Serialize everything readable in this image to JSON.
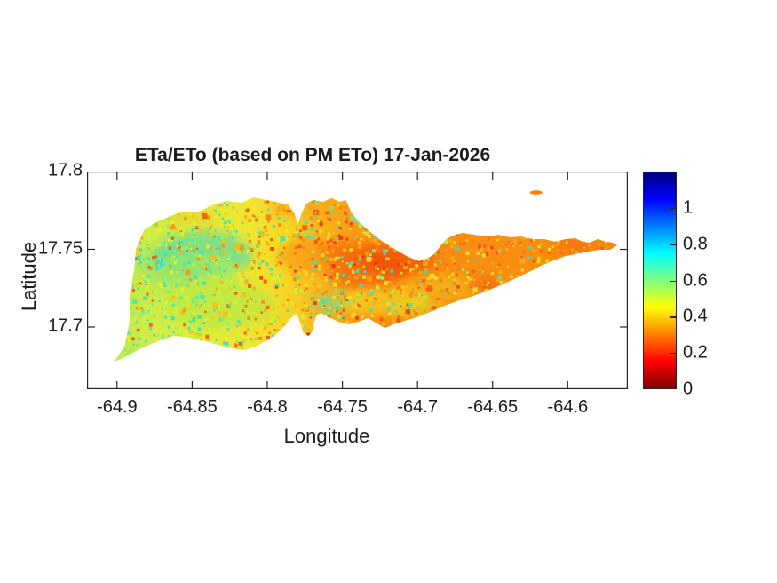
{
  "chart_data": {
    "type": "heatmap",
    "title": "ETa/ETo (based on PM ETo) 17-Jan-2026",
    "xlabel": "Longitude",
    "ylabel": "Latitude",
    "xlim": [
      -64.92,
      -64.56
    ],
    "ylim": [
      17.66,
      17.8
    ],
    "grid": false,
    "xticks": [
      -64.9,
      -64.85,
      -64.8,
      -64.75,
      -64.7,
      -64.65,
      -64.6
    ],
    "xtick_labels": [
      "-64.9",
      "-64.85",
      "-64.8",
      "-64.75",
      "-64.7",
      "-64.65",
      "-64.6"
    ],
    "yticks": [
      17.8,
      17.75,
      17.7
    ],
    "ytick_labels": [
      "17.8",
      "17.75",
      "17.7"
    ],
    "colorbar": {
      "min": 0,
      "max": 1.2,
      "ticks": [
        0,
        0.2,
        0.4,
        0.6,
        0.8,
        1
      ],
      "tick_labels": [
        "0",
        "0.2",
        "0.4",
        "0.6",
        "0.8",
        "1"
      ],
      "colormap": "jet-reversed (0 = dark red at bottom, 1.2 = dark blue at top)",
      "stops": [
        [
          0,
          "#800000"
        ],
        [
          0.125,
          "#ff0000"
        ],
        [
          0.25,
          "#ff8000"
        ],
        [
          0.375,
          "#ffff00"
        ],
        [
          0.5,
          "#80ff80"
        ],
        [
          0.625,
          "#00ffff"
        ],
        [
          0.75,
          "#0080ff"
        ],
        [
          0.875,
          "#0000ff"
        ],
        [
          1,
          "#000080"
        ]
      ]
    },
    "value_summary": {
      "west_island": "ETa/ETo mostly 0.45-0.75: yellow-green base with many cyan/green patches",
      "central_island": "ETa/ETo mostly 0.2-0.45: orange to red patches with scattered cyan specks",
      "east_island": "ETa/ETo mostly 0.25-0.4: fairly uniform orange toward the east point"
    },
    "island_outline": [
      [
        -64.902,
        17.6777
      ],
      [
        -64.8951,
        17.6874
      ],
      [
        -64.8916,
        17.7034
      ],
      [
        -64.8916,
        17.7206
      ],
      [
        -64.8886,
        17.7371
      ],
      [
        -64.8874,
        17.7503
      ],
      [
        -64.8821,
        17.7623
      ],
      [
        -64.8744,
        17.7674
      ],
      [
        -64.8655,
        17.7709
      ],
      [
        -64.8567,
        17.7743
      ],
      [
        -64.8466,
        17.7737
      ],
      [
        -64.8371,
        17.7783
      ],
      [
        -64.827,
        17.7811
      ],
      [
        -64.817,
        17.78
      ],
      [
        -64.8093,
        17.7834
      ],
      [
        -64.8004,
        17.7817
      ],
      [
        -64.7921,
        17.78
      ],
      [
        -64.7862,
        17.7789
      ],
      [
        -64.782,
        17.7731
      ],
      [
        -64.7797,
        17.7657
      ],
      [
        -64.7773,
        17.7726
      ],
      [
        -64.7743,
        17.7794
      ],
      [
        -64.769,
        17.7817
      ],
      [
        -64.7631,
        17.7806
      ],
      [
        -64.7572,
        17.7829
      ],
      [
        -64.7518,
        17.7806
      ],
      [
        -64.7477,
        17.7817
      ],
      [
        -64.7441,
        17.7737
      ],
      [
        -64.7394,
        17.768
      ],
      [
        -64.7323,
        17.7617
      ],
      [
        -64.724,
        17.7554
      ],
      [
        -64.7145,
        17.7497
      ],
      [
        -64.7062,
        17.7451
      ],
      [
        -64.6991,
        17.7423
      ],
      [
        -64.6932,
        17.744
      ],
      [
        -64.6885,
        17.7474
      ],
      [
        -64.6849,
        17.752
      ],
      [
        -64.6808,
        17.7566
      ],
      [
        -64.676,
        17.7589
      ],
      [
        -64.6701,
        17.7606
      ],
      [
        -64.6618,
        17.7594
      ],
      [
        -64.6536,
        17.7583
      ],
      [
        -64.6459,
        17.7594
      ],
      [
        -64.6382,
        17.7577
      ],
      [
        -64.6311,
        17.7583
      ],
      [
        -64.6234,
        17.7566
      ],
      [
        -64.6157,
        17.7566
      ],
      [
        -64.6086,
        17.7549
      ],
      [
        -64.6015,
        17.7566
      ],
      [
        -64.5949,
        17.7571
      ],
      [
        -64.5902,
        17.7549
      ],
      [
        -64.5855,
        17.7543
      ],
      [
        -64.5801,
        17.7566
      ],
      [
        -64.5748,
        17.7549
      ],
      [
        -64.5701,
        17.7543
      ],
      [
        -64.5671,
        17.7526
      ],
      [
        -64.5719,
        17.7497
      ],
      [
        -64.579,
        17.7497
      ],
      [
        -64.5867,
        17.7486
      ],
      [
        -64.5944,
        17.7469
      ],
      [
        -64.6015,
        17.7457
      ],
      [
        -64.6092,
        17.7429
      ],
      [
        -64.6181,
        17.7394
      ],
      [
        -64.627,
        17.7349
      ],
      [
        -64.6358,
        17.7309
      ],
      [
        -64.6447,
        17.7269
      ],
      [
        -64.6536,
        17.7234
      ],
      [
        -64.663,
        17.72
      ],
      [
        -64.6725,
        17.7171
      ],
      [
        -64.682,
        17.7137
      ],
      [
        -64.6915,
        17.7097
      ],
      [
        -64.7003,
        17.7063
      ],
      [
        -64.7086,
        17.704
      ],
      [
        -64.7157,
        17.7017
      ],
      [
        -64.7217,
        17.6994
      ],
      [
        -64.727,
        17.7023
      ],
      [
        -64.7329,
        17.7057
      ],
      [
        -64.7394,
        17.7034
      ],
      [
        -64.7459,
        17.7017
      ],
      [
        -64.7525,
        17.7034
      ],
      [
        -64.759,
        17.7063
      ],
      [
        -64.7643,
        17.7091
      ],
      [
        -64.7672,
        17.7074
      ],
      [
        -64.769,
        17.7029
      ],
      [
        -64.7702,
        17.6971
      ],
      [
        -64.7726,
        17.6943
      ],
      [
        -64.7761,
        17.6966
      ],
      [
        -64.7785,
        17.704
      ],
      [
        -64.7803,
        17.7086
      ],
      [
        -64.7838,
        17.7063
      ],
      [
        -64.7886,
        17.7006
      ],
      [
        -64.7945,
        17.6949
      ],
      [
        -64.801,
        17.6909
      ],
      [
        -64.8081,
        17.6874
      ],
      [
        -64.8158,
        17.6851
      ],
      [
        -64.8235,
        17.6863
      ],
      [
        -64.8312,
        17.688
      ],
      [
        -64.8389,
        17.6903
      ],
      [
        -64.8466,
        17.692
      ],
      [
        -64.8543,
        17.6937
      ],
      [
        -64.862,
        17.6943
      ],
      [
        -64.8697,
        17.692
      ],
      [
        -64.8774,
        17.6891
      ],
      [
        -64.8851,
        17.6857
      ],
      [
        -64.8916,
        17.6823
      ],
      [
        -64.8975,
        17.6794
      ]
    ],
    "islets": [
      [
        -64.621,
        17.7865,
        0.0042,
        0.0013,
        "#f9810f"
      ]
    ],
    "surface": {
      "base_gradient": [
        [
          0,
          "#c0e951"
        ],
        [
          0.07,
          "#ceec47"
        ],
        [
          0.15,
          "#daee3d"
        ],
        [
          0.25,
          "#eee832"
        ],
        [
          0.34,
          "#f6d824"
        ],
        [
          0.43,
          "#fbae17"
        ],
        [
          0.51,
          "#fa9011"
        ],
        [
          0.59,
          "#f9830e"
        ],
        [
          0.7,
          "#fa8d12"
        ],
        [
          0.82,
          "#fa9013"
        ],
        [
          1,
          "#f5830e"
        ]
      ],
      "blobs": [
        [
          -64.843,
          17.746,
          0.033,
          0.016,
          "#2fd9c8",
          0.55
        ],
        [
          -64.864,
          17.737,
          0.021,
          0.012,
          "#45e2ae",
          0.5
        ],
        [
          -64.831,
          17.714,
          0.036,
          0.015,
          "#9fe94f",
          0.5
        ],
        [
          -64.849,
          17.727,
          0.04,
          0.02,
          "#c4ec45",
          0.45
        ],
        [
          -64.734,
          17.736,
          0.027,
          0.013,
          "#f4500a",
          0.55
        ],
        [
          -64.713,
          17.744,
          0.024,
          0.01,
          "#f03f06",
          0.5
        ],
        [
          -64.769,
          17.7455,
          0.024,
          0.012,
          "#fa7e10",
          0.45
        ],
        [
          -64.7245,
          17.717,
          0.033,
          0.009,
          "#f6e426",
          0.6
        ],
        [
          -64.686,
          17.7255,
          0.03,
          0.008,
          "#f8d01c",
          0.5
        ],
        [
          -64.6565,
          17.727,
          0.012,
          0.005,
          "#ef4e08",
          0.5
        ],
        [
          -64.597,
          17.752,
          0.013,
          0.004,
          "#f05509",
          0.45
        ],
        [
          -64.758,
          17.715,
          0.012,
          0.006,
          "#3fe0bc",
          0.45
        ],
        [
          -64.7,
          17.711,
          0.02,
          0.006,
          "#cdee3a",
          0.5
        ],
        [
          -64.745,
          17.7485,
          0.018,
          0.008,
          "#f4560b",
          0.45
        ],
        [
          -64.62,
          17.744,
          0.03,
          0.009,
          "#f98c10",
          0.5
        ],
        [
          -64.775,
          17.776,
          0.025,
          0.006,
          "#f9a014",
          0.5
        ],
        [
          -64.852,
          17.771,
          0.02,
          0.005,
          "#f6c224",
          0.45
        ]
      ],
      "spots": [
        [
          -64.9025,
          17.6785,
          0.0015,
          0.0012,
          "#aa1c00"
        ],
        [
          -64.7725,
          17.695,
          0.002,
          0.0015,
          "#e03005"
        ],
        [
          -64.699,
          17.7425,
          0.0025,
          0.001,
          "#ef4a07"
        ]
      ],
      "speckle": {
        "seed": 20260117,
        "attempts": 3200,
        "bands": [
          {
            "lon_max": -64.815,
            "palette": [
              [
                "#2ee0cf",
                0.16
              ],
              [
                "#4be8a6",
                0.13
              ],
              [
                "#8fe971",
                0.1
              ],
              [
                "#c2ed3f",
                0.18
              ],
              [
                "#f0ee28",
                0.18
              ],
              [
                "#fbbb16",
                0.12
              ],
              [
                "#fa8b10",
                0.08
              ],
              [
                "#f25408",
                0.05
              ]
            ]
          },
          {
            "lon_max": -64.72,
            "palette": [
              [
                "#36e2c2",
                0.11
              ],
              [
                "#7ce87e",
                0.06
              ],
              [
                "#cfee36",
                0.1
              ],
              [
                "#f4e824",
                0.2
              ],
              [
                "#fba415",
                0.21
              ],
              [
                "#fa7d0e",
                0.14
              ],
              [
                "#f4540a",
                0.12
              ],
              [
                "#ea2d04",
                0.06
              ]
            ]
          },
          {
            "lon_max": -64.5,
            "palette": [
              [
                "#3ae0c0",
                0.06
              ],
              [
                "#aaec4e",
                0.06
              ],
              [
                "#f4e728",
                0.16
              ],
              [
                "#fbab14",
                0.24
              ],
              [
                "#fa8b10",
                0.25
              ],
              [
                "#f4610b",
                0.15
              ],
              [
                "#ee3a06",
                0.08
              ]
            ]
          }
        ]
      }
    }
  },
  "style": {
    "axis_color": "#262626",
    "text_color": "#1c1c1c",
    "background": "#ffffff"
  }
}
